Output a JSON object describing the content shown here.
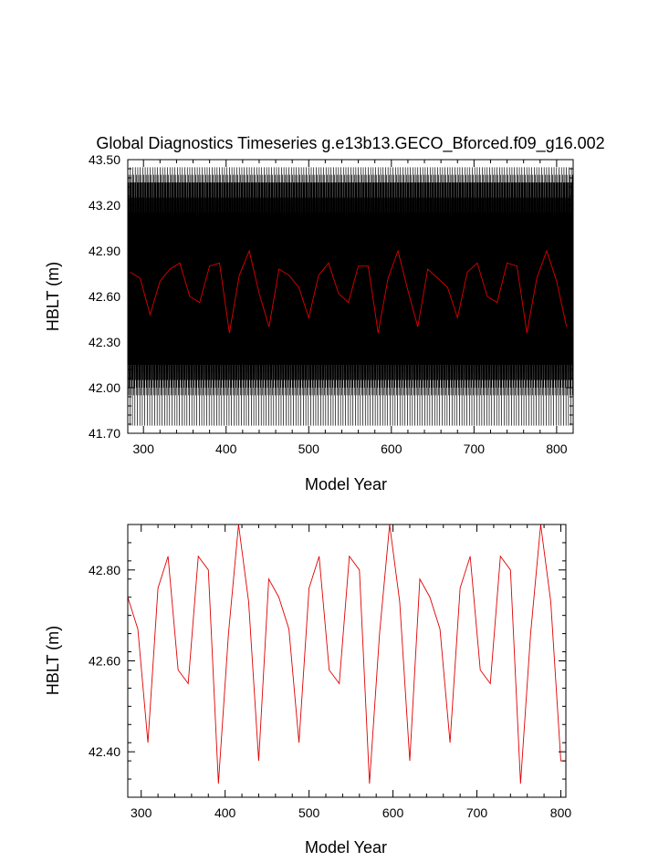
{
  "chart_data": [
    {
      "type": "line",
      "title": "Global Diagnostics Timeseries g.e13b13.GECO_Bforced.f09_g16.002",
      "xlabel": "Model Year",
      "ylabel": "HBLT (m)",
      "xlim": [
        281,
        820
      ],
      "ylim": [
        41.7,
        43.5
      ],
      "xticks": [
        "300",
        "400",
        "500",
        "600",
        "700",
        "800"
      ],
      "yticks": [
        "41.70",
        "42.00",
        "42.30",
        "42.60",
        "42.90",
        "43.20",
        "43.50"
      ],
      "grid": false,
      "legend": "none",
      "monthly_pattern": [
        42.85,
        43.45,
        42.6,
        42.05,
        43.1,
        42.35,
        43.3,
        42.7,
        42.15,
        43.35,
        42.45,
        42.95,
        42.25,
        43.2,
        42.55,
        41.95,
        43.4,
        42.65,
        42.1,
        43.25,
        42.4,
        42.8,
        42.3,
        43.05,
        42.5,
        42.0,
        43.15,
        42.75,
        42.2,
        43.35,
        42.45,
        41.75,
        42.9,
        43.3,
        42.4,
        42.65
      ],
      "series": [
        {
          "color": "#000000",
          "x_start": 281,
          "x_step": 0.0833,
          "y_pattern_ref": "monthly_pattern"
        },
        {
          "color": "#e00000",
          "x": [
            284,
            296,
            308,
            320,
            332,
            344,
            356,
            368,
            380,
            392,
            404,
            416,
            428,
            440,
            452,
            464,
            476,
            488,
            500,
            512,
            524,
            536,
            548,
            560,
            572,
            584,
            596,
            608,
            620,
            632,
            644,
            656,
            668,
            680,
            692,
            704,
            716,
            728,
            740,
            752,
            764,
            776,
            788,
            800,
            812
          ],
          "y": [
            42.76,
            42.72,
            42.48,
            42.7,
            42.78,
            42.82,
            42.6,
            42.56,
            42.8,
            42.82,
            42.36,
            42.74,
            42.9,
            42.62,
            42.4,
            42.78,
            42.74,
            42.66,
            42.46,
            42.74,
            42.82,
            42.62,
            42.56,
            42.8,
            42.8,
            42.36,
            42.72,
            42.9,
            42.64,
            42.4,
            42.78,
            42.72,
            42.66,
            42.46,
            42.76,
            42.82,
            42.6,
            42.56,
            42.82,
            42.8,
            42.36,
            42.72,
            42.9,
            42.7,
            42.4
          ]
        }
      ]
    },
    {
      "type": "line",
      "title": "",
      "xlabel": "Model Year",
      "ylabel": "HBLT (m)",
      "xlim": [
        284,
        806
      ],
      "ylim": [
        42.3,
        42.9
      ],
      "xticks": [
        "300",
        "400",
        "500",
        "600",
        "700",
        "800"
      ],
      "yticks": [
        "42.40",
        "42.60",
        "42.80"
      ],
      "grid": false,
      "legend": "none",
      "series": [
        {
          "color": "#e00000",
          "x": [
            284,
            296,
            308,
            320,
            332,
            344,
            356,
            368,
            380,
            392,
            404,
            416,
            428,
            440,
            452,
            464,
            476,
            488,
            500,
            512,
            524,
            536,
            548,
            560,
            572,
            584,
            596,
            608,
            620,
            632,
            644,
            656,
            668,
            680,
            692,
            704,
            716,
            728,
            740,
            752,
            764,
            776,
            788,
            800,
            806
          ],
          "y": [
            42.74,
            42.67,
            42.42,
            42.76,
            42.83,
            42.58,
            42.55,
            42.83,
            42.8,
            42.33,
            42.66,
            42.9,
            42.73,
            42.38,
            42.78,
            42.74,
            42.67,
            42.42,
            42.76,
            42.83,
            42.58,
            42.55,
            42.83,
            42.8,
            42.33,
            42.66,
            42.9,
            42.73,
            42.38,
            42.78,
            42.74,
            42.67,
            42.42,
            42.76,
            42.83,
            42.58,
            42.55,
            42.83,
            42.8,
            42.33,
            42.66,
            42.9,
            42.73,
            42.38,
            42.38
          ]
        }
      ]
    }
  ]
}
